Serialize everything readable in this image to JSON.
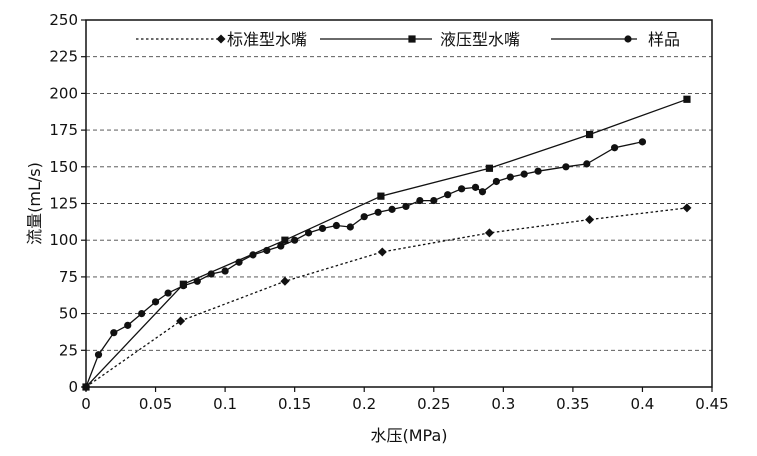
{
  "chart_data": {
    "type": "line",
    "xlabel": "水压(MPa)",
    "ylabel": "流量(mL/s)",
    "xlim": [
      0,
      0.45
    ],
    "ylim": [
      0,
      250
    ],
    "x_ticks": [
      0,
      0.05,
      0.1,
      0.15,
      0.2,
      0.25,
      0.3,
      0.35,
      0.4,
      0.45
    ],
    "x_tick_labels": [
      "0",
      "0.05",
      "0.1",
      "0.15",
      "0.2",
      "0.25",
      "0.3",
      "0.35",
      "0.4",
      "0.45"
    ],
    "y_ticks": [
      0,
      25,
      50,
      75,
      100,
      125,
      150,
      175,
      200,
      225,
      250
    ],
    "y_tick_labels": [
      "0",
      "25",
      "50",
      "75",
      "100",
      "125",
      "150",
      "175",
      "200",
      "225",
      "250"
    ],
    "grid": "horizontal-dashed",
    "legend_position": "top",
    "series": [
      {
        "name": "标准型水嘴",
        "marker": "diamond",
        "line": "dotted",
        "color": "#111111",
        "x": [
          0,
          0.068,
          0.143,
          0.213,
          0.29,
          0.362,
          0.432
        ],
        "y": [
          0,
          45,
          72,
          92,
          105,
          114,
          122
        ]
      },
      {
        "name": "液压型水嘴",
        "marker": "square",
        "line": "solid",
        "color": "#111111",
        "x": [
          0,
          0.07,
          0.143,
          0.212,
          0.29,
          0.362,
          0.432
        ],
        "y": [
          0,
          70,
          100,
          130,
          149,
          172,
          196
        ]
      },
      {
        "name": "样品",
        "marker": "circle",
        "line": "solid",
        "color": "#111111",
        "x": [
          0,
          0.009,
          0.02,
          0.03,
          0.04,
          0.05,
          0.059,
          0.07,
          0.08,
          0.09,
          0.1,
          0.11,
          0.12,
          0.13,
          0.14,
          0.15,
          0.16,
          0.17,
          0.18,
          0.19,
          0.2,
          0.21,
          0.22,
          0.23,
          0.24,
          0.25,
          0.26,
          0.27,
          0.28,
          0.285,
          0.295,
          0.305,
          0.315,
          0.325,
          0.345,
          0.36,
          0.38,
          0.4
        ],
        "y": [
          0,
          22,
          37,
          42,
          50,
          58,
          64,
          69,
          72,
          77,
          79,
          85,
          90,
          93,
          96,
          100,
          105,
          108,
          110,
          109,
          116,
          119,
          121,
          123,
          127,
          127,
          131,
          135,
          136,
          133,
          140,
          143,
          145,
          147,
          150,
          152,
          163,
          167
        ]
      }
    ]
  }
}
